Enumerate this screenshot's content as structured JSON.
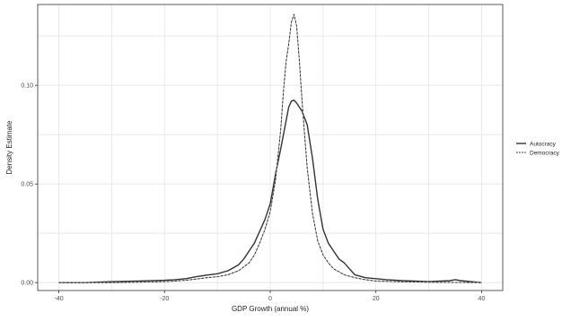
{
  "chart_data": {
    "type": "line",
    "title": "",
    "xlabel": "GDP Growth (annual %)",
    "ylabel": "Density Estimate",
    "xlim": [
      -44,
      44
    ],
    "ylim": [
      -0.004,
      0.141
    ],
    "x_ticks": [
      -40,
      -20,
      0,
      20,
      40
    ],
    "x_tick_labels": [
      "-40",
      "-20",
      "0",
      "20",
      "40"
    ],
    "y_ticks": [
      0.0,
      0.05,
      0.1
    ],
    "y_tick_labels": [
      "0.00",
      "0.05",
      "0.10"
    ],
    "grid": true,
    "legend_position": "right",
    "series": [
      {
        "name": "Autocracy",
        "line_style": "solid",
        "color": "#333333",
        "x": [
          -40,
          -35,
          -30,
          -25,
          -20,
          -18,
          -16,
          -14,
          -12,
          -10,
          -8,
          -6,
          -5,
          -4,
          -3,
          -2,
          -1,
          0,
          1,
          2,
          3,
          3.5,
          4,
          4.5,
          5,
          5.5,
          6,
          7,
          8,
          9,
          10,
          11,
          12,
          13,
          14,
          15,
          16,
          18,
          20,
          22,
          25,
          30,
          34,
          35,
          36,
          40
        ],
        "y": [
          0.0,
          0.0,
          0.0005,
          0.0008,
          0.0012,
          0.0015,
          0.002,
          0.003,
          0.0038,
          0.0045,
          0.006,
          0.009,
          0.012,
          0.016,
          0.02,
          0.026,
          0.032,
          0.04,
          0.055,
          0.068,
          0.082,
          0.089,
          0.092,
          0.0925,
          0.091,
          0.089,
          0.087,
          0.08,
          0.063,
          0.042,
          0.027,
          0.02,
          0.016,
          0.012,
          0.01,
          0.007,
          0.004,
          0.0025,
          0.002,
          0.0015,
          0.001,
          0.0005,
          0.001,
          0.0015,
          0.001,
          0.0
        ]
      },
      {
        "name": "Democracy",
        "line_style": "dashed",
        "color": "#333333",
        "x": [
          -40,
          -30,
          -25,
          -20,
          -18,
          -16,
          -14,
          -12,
          -10,
          -8,
          -6,
          -4,
          -3,
          -2,
          -1,
          0,
          1,
          2,
          2.5,
          3,
          3.5,
          4,
          4.5,
          5,
          5.5,
          6,
          6.5,
          7,
          8,
          9,
          10,
          11,
          12,
          14,
          16,
          18,
          20,
          25,
          30,
          40
        ],
        "y": [
          0.0,
          0.0,
          0.0002,
          0.0005,
          0.0008,
          0.0012,
          0.0018,
          0.0025,
          0.003,
          0.004,
          0.006,
          0.01,
          0.014,
          0.02,
          0.027,
          0.036,
          0.052,
          0.078,
          0.097,
          0.112,
          0.121,
          0.132,
          0.136,
          0.13,
          0.113,
          0.093,
          0.075,
          0.058,
          0.035,
          0.021,
          0.014,
          0.01,
          0.007,
          0.004,
          0.0025,
          0.0015,
          0.0008,
          0.0004,
          0.0002,
          0.0
        ]
      },
      {
        "name": "",
        "line_style": "solid",
        "color": "#a8a8a8",
        "x": [
          -40,
          -30,
          -25,
          -20,
          -18,
          -16,
          -14,
          -12,
          -10,
          -8,
          -6,
          -4,
          -3,
          -2,
          -1,
          0,
          1,
          2,
          2.5,
          3,
          3.5,
          4,
          4.5,
          5,
          5.5,
          6,
          6.5,
          7,
          8,
          9,
          10,
          11,
          12,
          14,
          16,
          18,
          20,
          25,
          30,
          40
        ],
        "y": [
          0.0,
          0.0,
          0.0002,
          0.0005,
          0.0008,
          0.0012,
          0.0018,
          0.0025,
          0.003,
          0.004,
          0.006,
          0.01,
          0.014,
          0.02,
          0.027,
          0.036,
          0.052,
          0.078,
          0.097,
          0.112,
          0.121,
          0.132,
          0.136,
          0.13,
          0.113,
          0.093,
          0.075,
          0.058,
          0.035,
          0.021,
          0.014,
          0.01,
          0.007,
          0.004,
          0.0025,
          0.0015,
          0.0008,
          0.0004,
          0.0002,
          0.0
        ]
      }
    ]
  }
}
